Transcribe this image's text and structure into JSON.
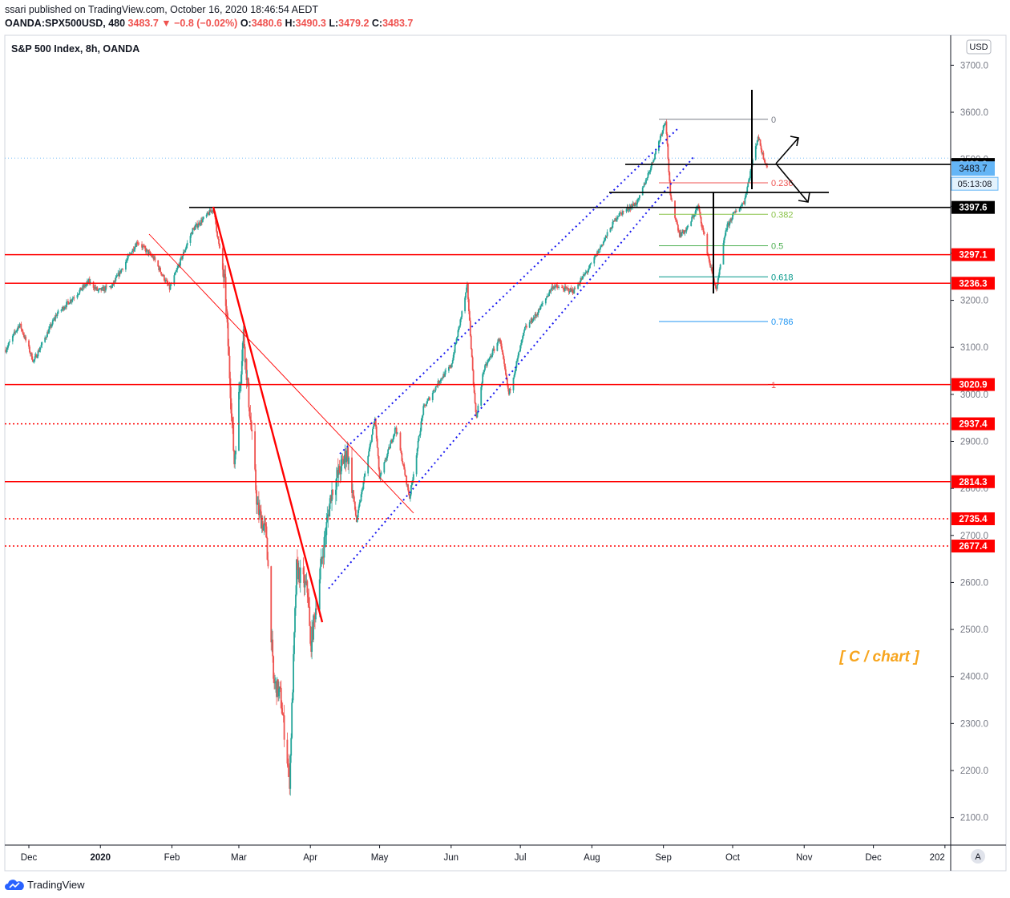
{
  "header": {
    "publisher": "ssari published on TradingView.com, October 16, 2020 18:46:54 AEDT",
    "symbol": "OANDA:SPX500USD, 480",
    "last": "3483.7",
    "arrow": "▼",
    "change": "−0.8 (−0.02%)",
    "o_label": "O:",
    "o": "3480.6",
    "h_label": "H:",
    "h": "3490.3",
    "l_label": "L:",
    "l": "3479.2",
    "c_label": "C:",
    "c": "3483.7"
  },
  "chart_data": {
    "type": "candlestick",
    "title": "S&P 500 Index, 8h, OANDA",
    "currency_button": "USD",
    "ylim": [
      2030,
      3740
    ],
    "y_ticks": [
      2100,
      2200,
      2300,
      2400,
      2500,
      2600,
      2700,
      2800,
      2900,
      3000,
      3100,
      3200,
      3300,
      3400,
      3500,
      3600,
      3700
    ],
    "y_tick_labels": [
      "2100.0",
      "2200.0",
      "2300.0",
      "2400.0",
      "2500.0",
      "2600.0",
      "2700.0",
      "2800.0",
      "2900.0",
      "3000.0",
      "3100.0",
      "3200.0",
      "3300.0",
      "3400.0",
      "3500.0",
      "3600.0",
      "3700.0"
    ],
    "x_labels": [
      "Dec",
      "2020",
      "Feb",
      "Mar",
      "Apr",
      "May",
      "Jun",
      "Jul",
      "Aug",
      "Sep",
      "Oct",
      "Nov",
      "Dec",
      "202"
    ],
    "x_label_dates": [
      "2019-12-01",
      "2020-01-01",
      "2020-02-01",
      "2020-03-01",
      "2020-04-01",
      "2020-05-01",
      "2020-06-01",
      "2020-07-01",
      "2020-08-01",
      "2020-09-01",
      "2020-10-01",
      "2020-11-01",
      "2020-12-01",
      "2021-01-01"
    ],
    "colors": {
      "up": "#26a69a",
      "down": "#ef5350",
      "support": "#ff0000",
      "black": "#000000",
      "channel": "#1a1af0",
      "watermark": "#f7a51e"
    },
    "price_path": [
      [
        "2019-11-21",
        3095
      ],
      [
        "2019-11-27",
        3150
      ],
      [
        "2019-12-03",
        3070
      ],
      [
        "2019-12-13",
        3170
      ],
      [
        "2019-12-27",
        3240
      ],
      [
        "2019-12-31",
        3220
      ],
      [
        "2020-01-06",
        3230
      ],
      [
        "2020-01-17",
        3325
      ],
      [
        "2020-01-24",
        3290
      ],
      [
        "2020-01-31",
        3225
      ],
      [
        "2020-02-10",
        3350
      ],
      [
        "2020-02-19",
        3395
      ],
      [
        "2020-02-24",
        3230
      ],
      [
        "2020-02-28",
        2855
      ],
      [
        "2020-03-03",
        3130
      ],
      [
        "2020-03-09",
        2760
      ],
      [
        "2020-03-13",
        2700
      ],
      [
        "2020-03-16",
        2390
      ],
      [
        "2020-03-19",
        2360
      ],
      [
        "2020-03-23",
        2180
      ],
      [
        "2020-03-26",
        2630
      ],
      [
        "2020-03-31",
        2580
      ],
      [
        "2020-04-01",
        2460
      ],
      [
        "2020-04-06",
        2650
      ],
      [
        "2020-04-10",
        2790
      ],
      [
        "2020-04-17",
        2880
      ],
      [
        "2020-04-21",
        2730
      ],
      [
        "2020-04-29",
        2950
      ],
      [
        "2020-05-01",
        2820
      ],
      [
        "2020-05-08",
        2930
      ],
      [
        "2020-05-14",
        2780
      ],
      [
        "2020-05-20",
        2970
      ],
      [
        "2020-05-27",
        3030
      ],
      [
        "2020-06-01",
        3060
      ],
      [
        "2020-06-08",
        3230
      ],
      [
        "2020-06-11",
        3000
      ],
      [
        "2020-06-12",
        2950
      ],
      [
        "2020-06-15",
        3050
      ],
      [
        "2020-06-22",
        3120
      ],
      [
        "2020-06-26",
        3000
      ],
      [
        "2020-07-03",
        3140
      ],
      [
        "2020-07-08",
        3170
      ],
      [
        "2020-07-15",
        3230
      ],
      [
        "2020-07-24",
        3220
      ],
      [
        "2020-07-31",
        3270
      ],
      [
        "2020-08-12",
        3380
      ],
      [
        "2020-08-21",
        3410
      ],
      [
        "2020-08-27",
        3490
      ],
      [
        "2020-09-02",
        3585
      ],
      [
        "2020-09-04",
        3420
      ],
      [
        "2020-09-08",
        3340
      ],
      [
        "2020-09-11",
        3350
      ],
      [
        "2020-09-16",
        3400
      ],
      [
        "2020-09-21",
        3280
      ],
      [
        "2020-09-24",
        3220
      ],
      [
        "2020-09-28",
        3350
      ],
      [
        "2020-10-01",
        3380
      ],
      [
        "2020-10-06",
        3410
      ],
      [
        "2020-10-09",
        3480
      ],
      [
        "2020-10-12",
        3550
      ],
      [
        "2020-10-14",
        3510
      ],
      [
        "2020-10-16",
        3483.7
      ]
    ],
    "horizontal_levels": [
      {
        "value": 3489.0,
        "label": "3489.0",
        "style": "black"
      },
      {
        "value": 3397.6,
        "label": "3397.6",
        "style": "black"
      },
      {
        "value": 3297.1,
        "label": "3297.1",
        "style": "solid-red"
      },
      {
        "value": 3236.3,
        "label": "3236.3",
        "style": "solid-red"
      },
      {
        "value": 3020.9,
        "label": "3020.9",
        "style": "solid-red"
      },
      {
        "value": 2937.4,
        "label": "2937.4",
        "style": "dotted-red"
      },
      {
        "value": 2814.3,
        "label": "2814.3",
        "style": "solid-red"
      },
      {
        "value": 2735.4,
        "label": "2735.4",
        "style": "dotted-red"
      },
      {
        "value": 2677.4,
        "label": "2677.4",
        "style": "dotted-red"
      }
    ],
    "last_price": {
      "value": 3483.7,
      "label": "3483.7",
      "countdown": "05:13:08"
    },
    "fibonacci": [
      {
        "ratio": "0",
        "value": 3585,
        "color": "#787b86"
      },
      {
        "ratio": "0.236",
        "value": 3450,
        "color": "#ef5350"
      },
      {
        "ratio": "0.382",
        "value": 3383,
        "color": "#8bc34a"
      },
      {
        "ratio": "0.5",
        "value": 3316,
        "color": "#4caf50"
      },
      {
        "ratio": "0.618",
        "value": 3250,
        "color": "#009688"
      },
      {
        "ratio": "0.786",
        "value": 3155,
        "color": "#2196f3"
      },
      {
        "ratio": "1",
        "value": 3020,
        "color": "#ef5350"
      }
    ],
    "annotation": "[ C / chart ]",
    "attribution": "TradingView",
    "timezone_button": "A"
  }
}
